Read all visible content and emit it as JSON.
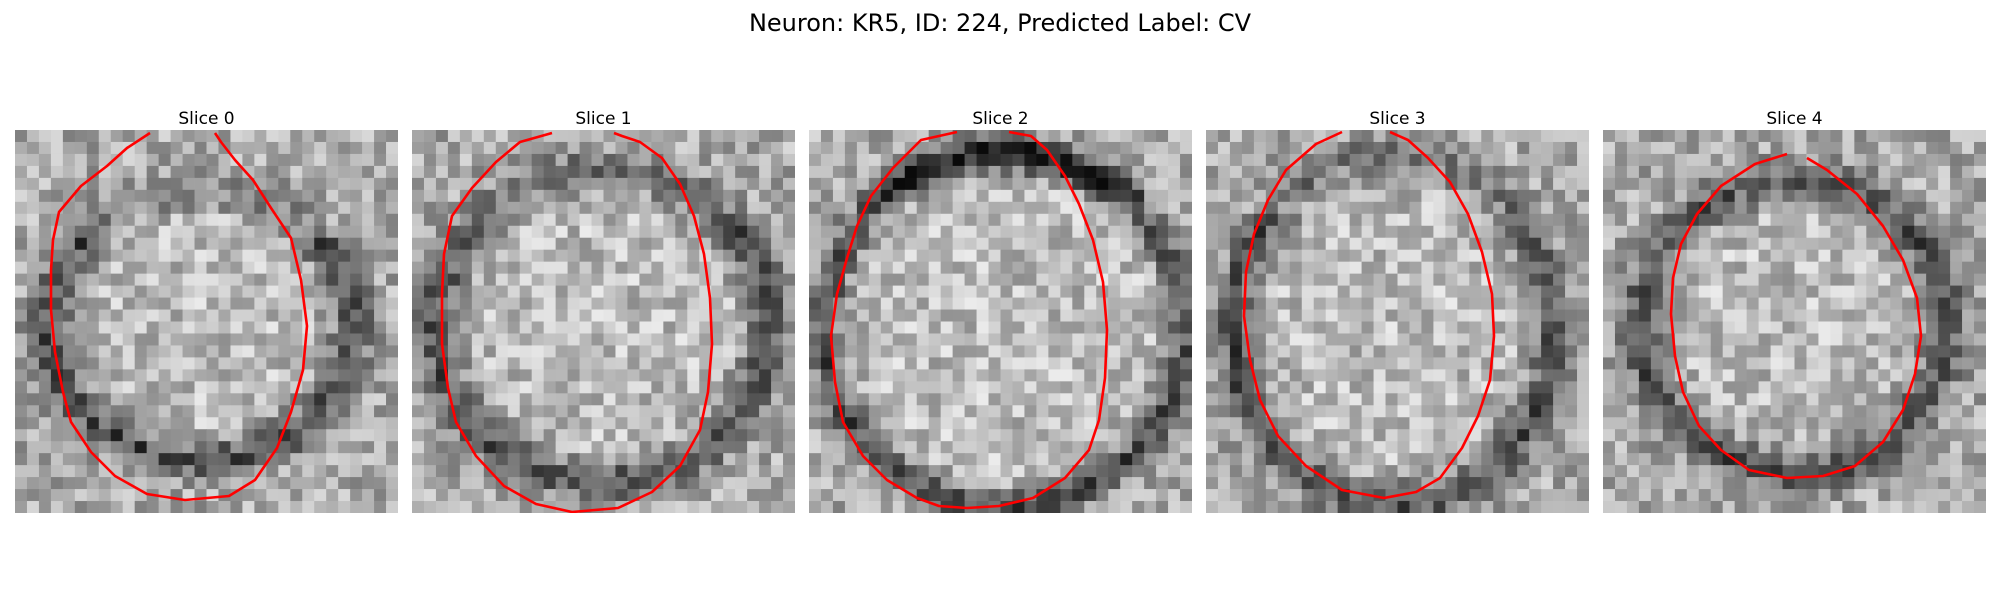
{
  "figure": {
    "title": "Neuron: KR5, ID: 224, Predicted Label: CV"
  },
  "panels": [
    {
      "title": "Slice 0"
    },
    {
      "title": "Slice 1"
    },
    {
      "title": "Slice 2"
    },
    {
      "title": "Slice 3"
    },
    {
      "title": "Slice 4"
    }
  ],
  "colors": {
    "contour": "#ff0000",
    "background": "#ffffff"
  }
}
